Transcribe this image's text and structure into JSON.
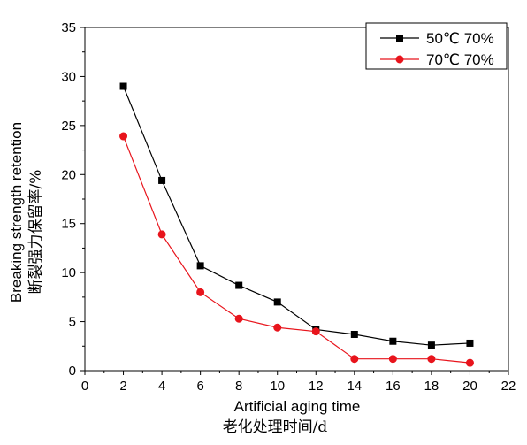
{
  "chart_data": {
    "type": "line",
    "xlabel": "Artificial aging time",
    "xlabel_cn": "老化处理时间/d",
    "ylabel": "Breaking strength retention",
    "ylabel_cn": "断裂强力保留率/%",
    "xlim": [
      0,
      22
    ],
    "ylim": [
      0,
      35
    ],
    "x_ticks": [
      0,
      2,
      4,
      6,
      8,
      10,
      12,
      14,
      16,
      18,
      20,
      22
    ],
    "y_ticks": [
      0,
      5,
      10,
      15,
      20,
      25,
      30,
      35
    ],
    "grid": false,
    "legend_position": "top-right",
    "series": [
      {
        "name": "50℃ 70%",
        "color": "#000000",
        "marker": "square",
        "x": [
          2,
          4,
          6,
          8,
          10,
          12,
          14,
          16,
          18,
          20
        ],
        "y": [
          29.0,
          19.4,
          10.7,
          8.7,
          7.0,
          4.2,
          3.7,
          3.0,
          2.6,
          2.8
        ]
      },
      {
        "name": "70℃ 70%",
        "color": "#e8141c",
        "marker": "circle",
        "x": [
          2,
          4,
          6,
          8,
          10,
          12,
          14,
          16,
          18,
          20
        ],
        "y": [
          23.9,
          13.9,
          8.0,
          5.3,
          4.4,
          4.0,
          1.2,
          1.2,
          1.2,
          0.8
        ]
      }
    ]
  }
}
